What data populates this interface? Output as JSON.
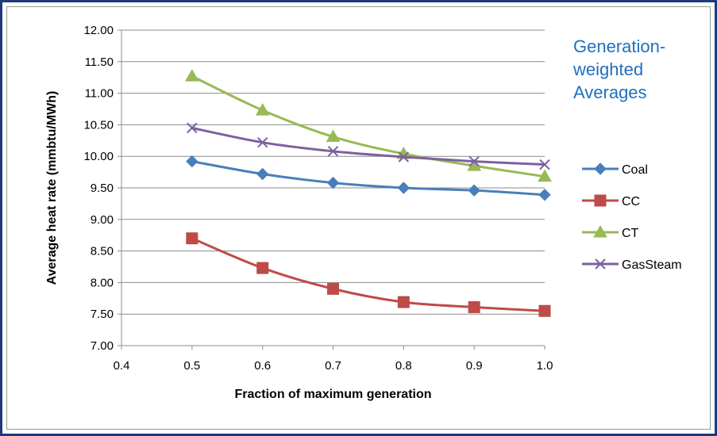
{
  "chart_data": {
    "type": "line",
    "title": "",
    "annotation_lines": [
      "Generation-",
      "weighted",
      "Averages"
    ],
    "xlabel": "Fraction of maximum generation",
    "ylabel": "Average heat rate (mmbtu/MWh)",
    "xlim": [
      0.4,
      1.0
    ],
    "ylim": [
      7.0,
      12.0
    ],
    "x_ticks": [
      "0.4",
      "0.5",
      "0.6",
      "0.7",
      "0.8",
      "0.9",
      "1.0"
    ],
    "y_ticks": [
      "7.00",
      "7.50",
      "8.00",
      "8.50",
      "9.00",
      "9.50",
      "10.00",
      "10.50",
      "11.00",
      "11.50",
      "12.00"
    ],
    "grid": "horizontal",
    "legend_position": "right",
    "x": [
      0.5,
      0.6,
      0.7,
      0.8,
      0.9,
      1.0
    ],
    "series": [
      {
        "name": "Coal",
        "color": "#4a7ebb",
        "marker": "diamond",
        "values": [
          9.92,
          9.72,
          9.58,
          9.5,
          9.46,
          9.39
        ]
      },
      {
        "name": "CC",
        "color": "#be4b48",
        "marker": "square",
        "values": [
          8.7,
          8.23,
          7.9,
          7.69,
          7.61,
          7.55
        ]
      },
      {
        "name": "CT",
        "color": "#98b954",
        "marker": "triangle",
        "values": [
          11.27,
          10.73,
          10.31,
          10.04,
          9.85,
          9.68
        ]
      },
      {
        "name": "GasSteam",
        "color": "#7d60a0",
        "marker": "x",
        "values": [
          10.45,
          10.22,
          10.08,
          9.99,
          9.92,
          9.87
        ]
      }
    ]
  }
}
